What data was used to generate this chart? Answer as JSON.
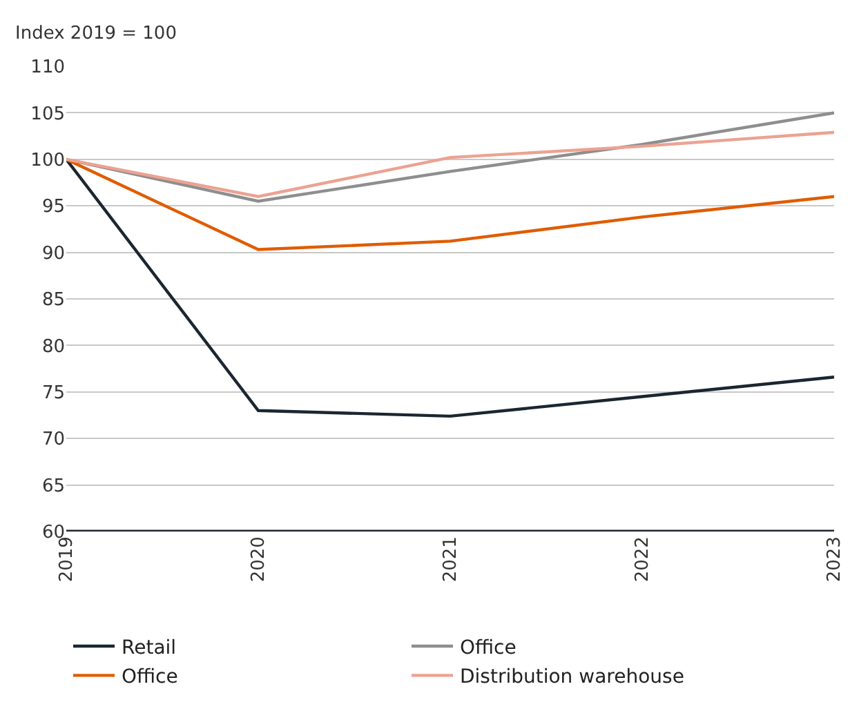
{
  "chart_data": {
    "type": "line",
    "ylabel": "Index 2019 = 100",
    "categories": [
      "2019",
      "2020",
      "2021",
      "2022",
      "2023"
    ],
    "series": [
      {
        "name": "Retail",
        "color": "#1b2631",
        "values": [
          100,
          73.0,
          72.4,
          74.5,
          76.6
        ]
      },
      {
        "name": "Office",
        "color": "#8e8e8e",
        "values": [
          100,
          95.5,
          98.7,
          101.6,
          105.0
        ]
      },
      {
        "name": "Office",
        "color": "#e05c00",
        "values": [
          100,
          90.3,
          91.2,
          93.8,
          96.0
        ]
      },
      {
        "name": "Distribution warehouse",
        "color": "#eca292",
        "values": [
          100,
          96.0,
          100.2,
          101.4,
          102.9
        ]
      }
    ],
    "ylim": [
      60,
      110
    ],
    "yticks": [
      60,
      65,
      70,
      75,
      80,
      85,
      90,
      95,
      100,
      105,
      110
    ],
    "grid": "y",
    "legend": "bottom",
    "marker": "none",
    "line_style": "solid"
  }
}
